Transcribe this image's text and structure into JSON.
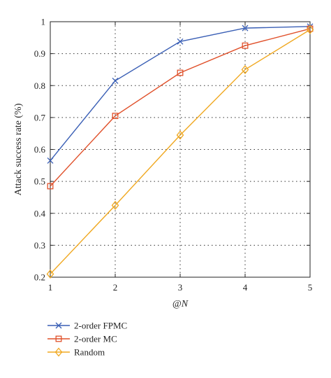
{
  "chart_data": {
    "type": "line",
    "title": "",
    "xlabel": "@N",
    "ylabel": "Attack success rate (%)",
    "x": [
      1,
      2,
      3,
      4,
      5
    ],
    "xlim": [
      1,
      5
    ],
    "ylim": [
      0.2,
      1
    ],
    "xticks": [
      "1",
      "2",
      "3",
      "4",
      "5"
    ],
    "yticks": [
      "0.2",
      "0.3",
      "0.4",
      "0.5",
      "0.6",
      "0.7",
      "0.8",
      "0.9",
      "1"
    ],
    "grid": true,
    "legend_position": "bottom-left outside",
    "series": [
      {
        "name": "2-order FPMC",
        "color": "#3a5fb5",
        "marker": "x",
        "values": [
          0.565,
          0.815,
          0.938,
          0.98,
          0.985
        ]
      },
      {
        "name": "2-order MC",
        "color": "#e0502a",
        "marker": "square",
        "values": [
          0.485,
          0.705,
          0.84,
          0.925,
          0.978
        ]
      },
      {
        "name": "Random",
        "color": "#f0a820",
        "marker": "diamond",
        "values": [
          0.21,
          0.425,
          0.645,
          0.85,
          0.975
        ]
      }
    ]
  }
}
